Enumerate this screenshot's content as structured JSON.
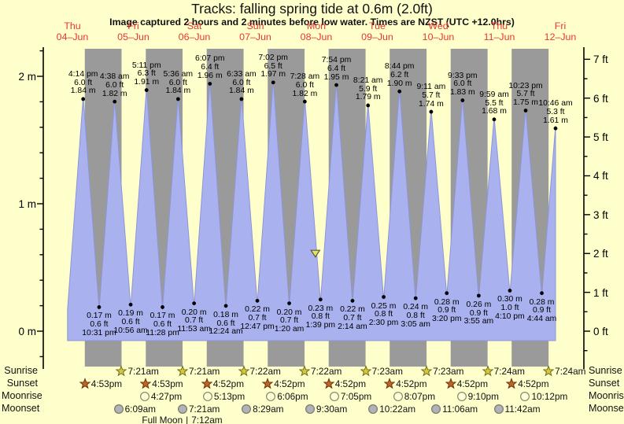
{
  "page": {
    "title": "Tracks: falling  spring tide at 0.6m (2.0ft)",
    "subtitle": "Image captured 2 hours and 2 minutes before low water. Times are NZST (UTC +12.0hrs)"
  },
  "days": [
    {
      "dow": "Thu",
      "date": "04–Jun"
    },
    {
      "dow": "Fri",
      "date": "05–Jun"
    },
    {
      "dow": "Sat",
      "date": "06–Jun"
    },
    {
      "dow": "Sun",
      "date": "07–Jun"
    },
    {
      "dow": "Mon",
      "date": "08–Jun"
    },
    {
      "dow": "Tue",
      "date": "09–Jun"
    },
    {
      "dow": "Wed",
      "date": "10–Jun"
    },
    {
      "dow": "Thu",
      "date": "11–Jun"
    },
    {
      "dow": "Fri",
      "date": "12–Jun"
    }
  ],
  "chart_data": {
    "type": "area",
    "title": "Tracks: falling  spring tide at 0.6m (2.0ft)",
    "x_axis": "Days Thu 04-Jun through Fri 12-Jun, shaded grey from sunset to sunrise",
    "ylabel_left": "metres",
    "ylabel_right": "feet",
    "ylim_m": [
      -0.3,
      2.2
    ],
    "ylim_ft": [
      -1,
      7.5
    ],
    "y_axis_m": {
      "labels": [
        "0 m",
        "1 m",
        "2 m"
      ],
      "values": [
        0,
        1,
        2
      ],
      "minor_step": 0.2
    },
    "y_axis_ft": {
      "labels": [
        "0 ft",
        "1 ft",
        "2 ft",
        "3 ft",
        "4 ft",
        "5 ft",
        "6 ft",
        "7 ft"
      ],
      "values": [
        0,
        1,
        2,
        3,
        4,
        5,
        6,
        7
      ],
      "minor_step": 0.5
    },
    "high_tides": [
      {
        "day": 0,
        "time": "4:14 pm",
        "ft": "6.0 ft",
        "m": "1.84 m"
      },
      {
        "day": 1,
        "time": "4:38 am",
        "ft": "6.0 ft",
        "m": "1.82 m"
      },
      {
        "day": 1,
        "time": "5:11 pm",
        "ft": "6.3 ft",
        "m": "1.91 m"
      },
      {
        "day": 2,
        "time": "5:36 am",
        "ft": "6.0 ft",
        "m": "1.84 m"
      },
      {
        "day": 2,
        "time": "6:07 pm",
        "ft": "6.4 ft",
        "m": "1.96 m"
      },
      {
        "day": 3,
        "time": "6:33 am",
        "ft": "6.0 ft",
        "m": "1.84 m"
      },
      {
        "day": 3,
        "time": "7:02 pm",
        "ft": "6.5 ft",
        "m": "1.97 m"
      },
      {
        "day": 4,
        "time": "7:28 am",
        "ft": "6.0 ft",
        "m": "1.82 m"
      },
      {
        "day": 4,
        "time": "7:54 pm",
        "ft": "6.4 ft",
        "m": "1.95 m"
      },
      {
        "day": 5,
        "time": "8:21 am",
        "ft": "5.9 ft",
        "m": "1.79 m"
      },
      {
        "day": 5,
        "time": "8:44 pm",
        "ft": "6.2 ft",
        "m": "1.90 m"
      },
      {
        "day": 6,
        "time": "9:11 am",
        "ft": "5.7 ft",
        "m": "1.74 m"
      },
      {
        "day": 6,
        "time": "9:33 pm",
        "ft": "6.0 ft",
        "m": "1.83 m"
      },
      {
        "day": 7,
        "time": "9:59 am",
        "ft": "5.5 ft",
        "m": "1.68 m"
      },
      {
        "day": 7,
        "time": "10:23 pm",
        "ft": "5.7 ft",
        "m": "1.75 m"
      },
      {
        "day": 8,
        "time": "10:46 am",
        "ft": "5.3 ft",
        "m": "1.61 m"
      }
    ],
    "low_tides": [
      {
        "day": 0,
        "time": "10:31 pm",
        "ft": "0.6 ft",
        "m": "0.17 m"
      },
      {
        "day": 1,
        "time": "10:56 am",
        "ft": "0.6 ft",
        "m": "0.19 m"
      },
      {
        "day": 1,
        "time": "11:28 pm",
        "ft": "0.6 ft",
        "m": "0.17 m"
      },
      {
        "day": 2,
        "time": "11:53 am",
        "ft": "0.7 ft",
        "m": "0.20 m"
      },
      {
        "day": 3,
        "time": "12:24 am",
        "ft": "0.6 ft",
        "m": "0.18 m"
      },
      {
        "day": 3,
        "time": "12:47 pm",
        "ft": "0.7 ft",
        "m": "0.22 m"
      },
      {
        "day": 4,
        "time": "1:20 am",
        "ft": "0.7 ft",
        "m": "0.20 m"
      },
      {
        "day": 4,
        "time": "1:39 pm",
        "ft": "0.8 ft",
        "m": "0.23 m"
      },
      {
        "day": 5,
        "time": "2:14 am",
        "ft": "0.7 ft",
        "m": "0.22 m"
      },
      {
        "day": 5,
        "time": "2:30 pm",
        "ft": "0.8 ft",
        "m": "0.25 m"
      },
      {
        "day": 6,
        "time": "3:05 am",
        "ft": "0.8 ft",
        "m": "0.24 m"
      },
      {
        "day": 6,
        "time": "3:20 pm",
        "ft": "0.9 ft",
        "m": "0.28 m"
      },
      {
        "day": 7,
        "time": "3:55 am",
        "ft": "0.9 ft",
        "m": "0.26 m"
      },
      {
        "day": 7,
        "time": "4:10 pm",
        "ft": "1.0 ft",
        "m": "0.30 m"
      },
      {
        "day": 8,
        "time": "4:44 am",
        "ft": "0.9 ft",
        "m": "0.28 m"
      }
    ],
    "curve_start": {
      "day": 0,
      "time": "10:05 am",
      "meters": 0.17
    },
    "capture_marker": {
      "day": 4,
      "time": "11:37 am",
      "meters": 0.61
    }
  },
  "almanac": {
    "rows": [
      {
        "label": "Sunrise",
        "icon": "sunrise-star",
        "entries": [
          {
            "day": 1,
            "time": "7:21am"
          },
          {
            "day": 2,
            "time": "7:21am"
          },
          {
            "day": 3,
            "time": "7:22am"
          },
          {
            "day": 4,
            "time": "7:22am"
          },
          {
            "day": 5,
            "time": "7:23am"
          },
          {
            "day": 6,
            "time": "7:23am"
          },
          {
            "day": 7,
            "time": "7:24am"
          },
          {
            "day": 8,
            "time": "7:24am"
          }
        ]
      },
      {
        "label": "Sunset",
        "icon": "sunset-star",
        "entries": [
          {
            "day": 0,
            "time": "4:53pm"
          },
          {
            "day": 1,
            "time": "4:53pm"
          },
          {
            "day": 2,
            "time": "4:52pm"
          },
          {
            "day": 3,
            "time": "4:52pm"
          },
          {
            "day": 4,
            "time": "4:52pm"
          },
          {
            "day": 5,
            "time": "4:52pm"
          },
          {
            "day": 6,
            "time": "4:52pm"
          },
          {
            "day": 7,
            "time": "4:52pm"
          }
        ]
      },
      {
        "label": "Moonrise",
        "icon": "moonrise-circle",
        "entries": [
          {
            "day": 1,
            "time": "4:27pm"
          },
          {
            "day": 2,
            "time": "5:13pm"
          },
          {
            "day": 3,
            "time": "6:06pm"
          },
          {
            "day": 4,
            "time": "7:05pm"
          },
          {
            "day": 5,
            "time": "8:07pm"
          },
          {
            "day": 6,
            "time": "9:10pm"
          },
          {
            "day": 7,
            "time": "10:12pm"
          }
        ]
      },
      {
        "label": "Moonset",
        "icon": "moonset-circle",
        "entries": [
          {
            "day": 1,
            "time": "6:09am"
          },
          {
            "day": 2,
            "time": "7:21am"
          },
          {
            "day": 3,
            "time": "8:29am"
          },
          {
            "day": 4,
            "time": "9:30am"
          },
          {
            "day": 5,
            "time": "10:22am"
          },
          {
            "day": 6,
            "time": "11:06am"
          },
          {
            "day": 7,
            "time": "11:42am"
          }
        ]
      }
    ],
    "footnote": {
      "event": "Full Moon",
      "separator": "|",
      "time": "7:12am",
      "day": 2
    }
  },
  "colors": {
    "background": "#ffffcc",
    "night_band": "#9a9a9a",
    "tide_fill": "#a9b2ee",
    "tide_edge": "#8d96d8",
    "day_label": "#ee3333",
    "axis": "#000000",
    "sunrise_star_fill": "#d6c83c",
    "sunrise_star_stroke": "#6e6e20",
    "sunset_star_fill": "#bf6426",
    "sunset_star_stroke": "#6b3410",
    "moonrise_fill": "#ffffd9",
    "moonrise_stroke": "#8a8a6a",
    "moonset_fill": "#b3b3b3",
    "moonset_stroke": "#777777",
    "marker_fill": "#e6e64d",
    "marker_stroke": "#555555"
  }
}
